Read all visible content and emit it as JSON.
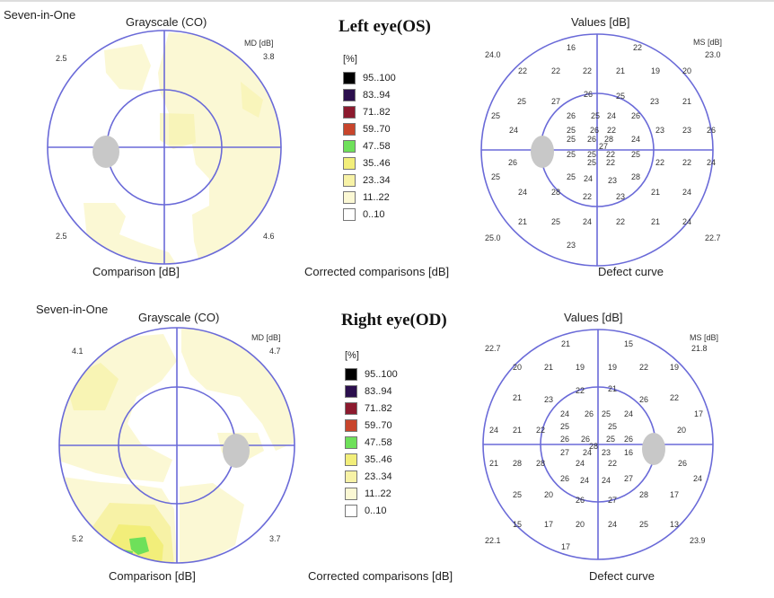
{
  "os": {
    "title": "Left eye(OS)",
    "gray": {
      "header": "Seven-in-One",
      "title": "Grayscale (CO)",
      "md_label": "MD [dB]",
      "corners": [
        "2.5",
        "3.8",
        "2.5",
        "4.6"
      ],
      "footer": "Comparison [dB]"
    },
    "legend": {
      "unit": "[%]",
      "items": [
        "95..100",
        "83..94",
        "71..82",
        "59..70",
        "47..58",
        "35..46",
        "23..34",
        "11..22",
        "0..10"
      ],
      "footer": "Corrected comparisons [dB]"
    },
    "values": {
      "title": "Values [dB]",
      "ms_label": "MS [dB]",
      "corners": [
        "24.0",
        "23.0",
        "25.0",
        "22.7"
      ],
      "footer": "Defect curve",
      "points": [
        "16",
        "22",
        "22",
        "22",
        "22",
        "21",
        "19",
        "20",
        "25",
        "27",
        "26",
        "25",
        "23",
        "21",
        "25",
        "26",
        "25",
        "24",
        "26",
        "24",
        "25",
        "26",
        "22",
        "23",
        "23",
        "26",
        "25",
        "26",
        "28",
        "24",
        "27",
        "25",
        "25",
        "22",
        "25",
        "26",
        "25",
        "22",
        "22",
        "22",
        "24",
        "25",
        "25",
        "24",
        "23",
        "28",
        "24",
        "28",
        "22",
        "23",
        "21",
        "24",
        "21",
        "25",
        "24",
        "22",
        "21",
        "24",
        "23"
      ]
    }
  },
  "od": {
    "title": "Right eye(OD)",
    "gray": {
      "header": "Seven-in-One",
      "title": "Grayscale (CO)",
      "md_label": "MD [dB]",
      "corners": [
        "4.1",
        "4.7",
        "5.2",
        "3.7"
      ],
      "footer": "Comparison [dB]"
    },
    "legend": {
      "unit": "[%]",
      "items": [
        "95..100",
        "83..94",
        "71..82",
        "59..70",
        "47..58",
        "35..46",
        "23..34",
        "11..22",
        "0..10"
      ],
      "footer": "Corrected comparisons [dB]"
    },
    "values": {
      "title": "Values [dB]",
      "ms_label": "MS [dB]",
      "corners": [
        "22.7",
        "21.8",
        "22.1",
        "23.9"
      ],
      "footer": "Defect curve",
      "points": [
        "21",
        "15",
        "20",
        "21",
        "19",
        "19",
        "22",
        "19",
        "21",
        "23",
        "22",
        "21",
        "26",
        "22",
        "24",
        "26",
        "25",
        "24",
        "17",
        "24",
        "21",
        "22",
        "25",
        "25",
        "20",
        "26",
        "26",
        "25",
        "26",
        "28",
        "27",
        "24",
        "23",
        "16",
        "21",
        "28",
        "28",
        "24",
        "22",
        "26",
        "26",
        "24",
        "24",
        "27",
        "24",
        "25",
        "20",
        "26",
        "27",
        "28",
        "17",
        "15",
        "17",
        "20",
        "24",
        "25",
        "13",
        "17"
      ]
    }
  },
  "colors": {
    "scale": [
      "#000000",
      "#2b0f4d",
      "#8c1a2e",
      "#c8452c",
      "#6ee05a",
      "#f2ee7a",
      "#f7f2a6",
      "#fbf8d4",
      "#ffffff"
    ],
    "grid": "#6a6ad8",
    "blindspot": "#c8c8c8"
  }
}
